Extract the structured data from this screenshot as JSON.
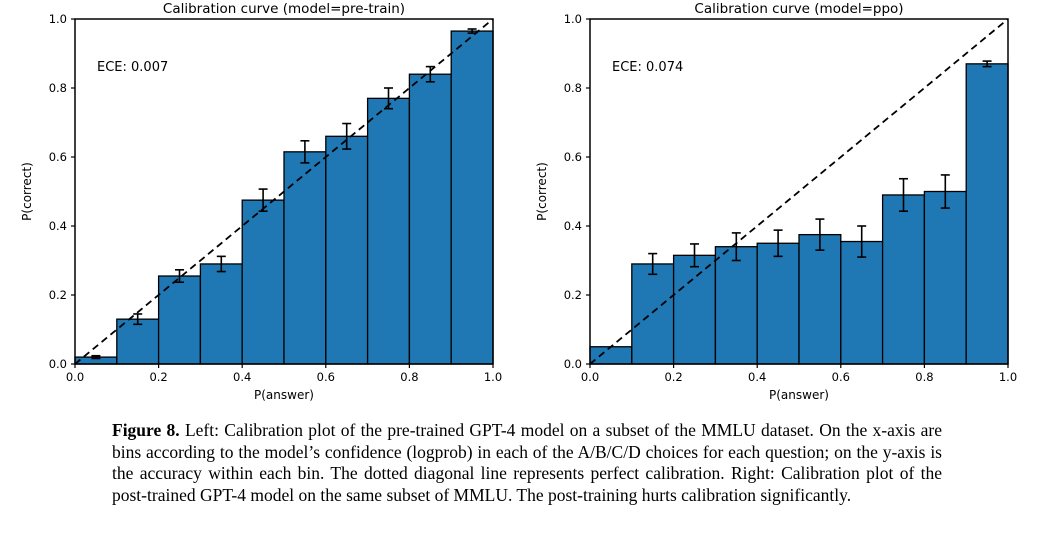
{
  "figure": {
    "caption_label": "Figure 8.",
    "caption_text": " Left: Calibration plot of the pre-trained GPT-4 model on a subset of the MMLU dataset. On the x-axis are bins according to the model’s confidence (logprob) in each of the A/B/C/D choices for each question; on the y-axis is the accuracy within each bin. The dotted diagonal line represents perfect calibration. Right: Calibration plot of the post-trained GPT-4 model on the same subset of MMLU. The post-training hurts calibration significantly."
  },
  "colors": {
    "bar_fill": "#1f77b4",
    "bar_edge": "#000000",
    "axis": "#000000",
    "diagonal": "#000000",
    "text": "#000000",
    "background": "#ffffff"
  },
  "chart_data": [
    {
      "type": "bar",
      "title": "Calibration curve (model=pre-train)",
      "annotation": "ECE: 0.007",
      "xlabel": "P(answer)",
      "ylabel": "P(correct)",
      "xlim": [
        0.0,
        1.0
      ],
      "ylim": [
        0.0,
        1.0
      ],
      "xticks": [
        0.0,
        0.2,
        0.4,
        0.6,
        0.8,
        1.0
      ],
      "yticks": [
        0.0,
        0.2,
        0.4,
        0.6,
        0.8,
        1.0
      ],
      "grid": false,
      "legend": "none",
      "bin_width": 0.1,
      "bin_centers": [
        0.05,
        0.15,
        0.25,
        0.35,
        0.45,
        0.55,
        0.65,
        0.75,
        0.85,
        0.95
      ],
      "values": [
        0.02,
        0.13,
        0.255,
        0.29,
        0.475,
        0.615,
        0.66,
        0.77,
        0.84,
        0.965
      ],
      "errors": [
        0.004,
        0.015,
        0.018,
        0.022,
        0.032,
        0.032,
        0.037,
        0.03,
        0.022,
        0.006
      ],
      "diagonal_line": "dashed y=x perfect calibration"
    },
    {
      "type": "bar",
      "title": "Calibration curve (model=ppo)",
      "annotation": "ECE: 0.074",
      "xlabel": "P(answer)",
      "ylabel": "P(correct)",
      "xlim": [
        0.0,
        1.0
      ],
      "ylim": [
        0.0,
        1.0
      ],
      "xticks": [
        0.0,
        0.2,
        0.4,
        0.6,
        0.8,
        1.0
      ],
      "yticks": [
        0.0,
        0.2,
        0.4,
        0.6,
        0.8,
        1.0
      ],
      "grid": false,
      "legend": "none",
      "bin_width": 0.1,
      "bin_centers": [
        0.05,
        0.15,
        0.25,
        0.35,
        0.45,
        0.55,
        0.65,
        0.75,
        0.85,
        0.95
      ],
      "values": [
        0.05,
        0.29,
        0.315,
        0.34,
        0.35,
        0.375,
        0.355,
        0.49,
        0.5,
        0.87
      ],
      "errors": [
        0,
        0.03,
        0.033,
        0.04,
        0.038,
        0.045,
        0.045,
        0.047,
        0.048,
        0.008
      ],
      "diagonal_line": "dashed y=x perfect calibration"
    }
  ]
}
